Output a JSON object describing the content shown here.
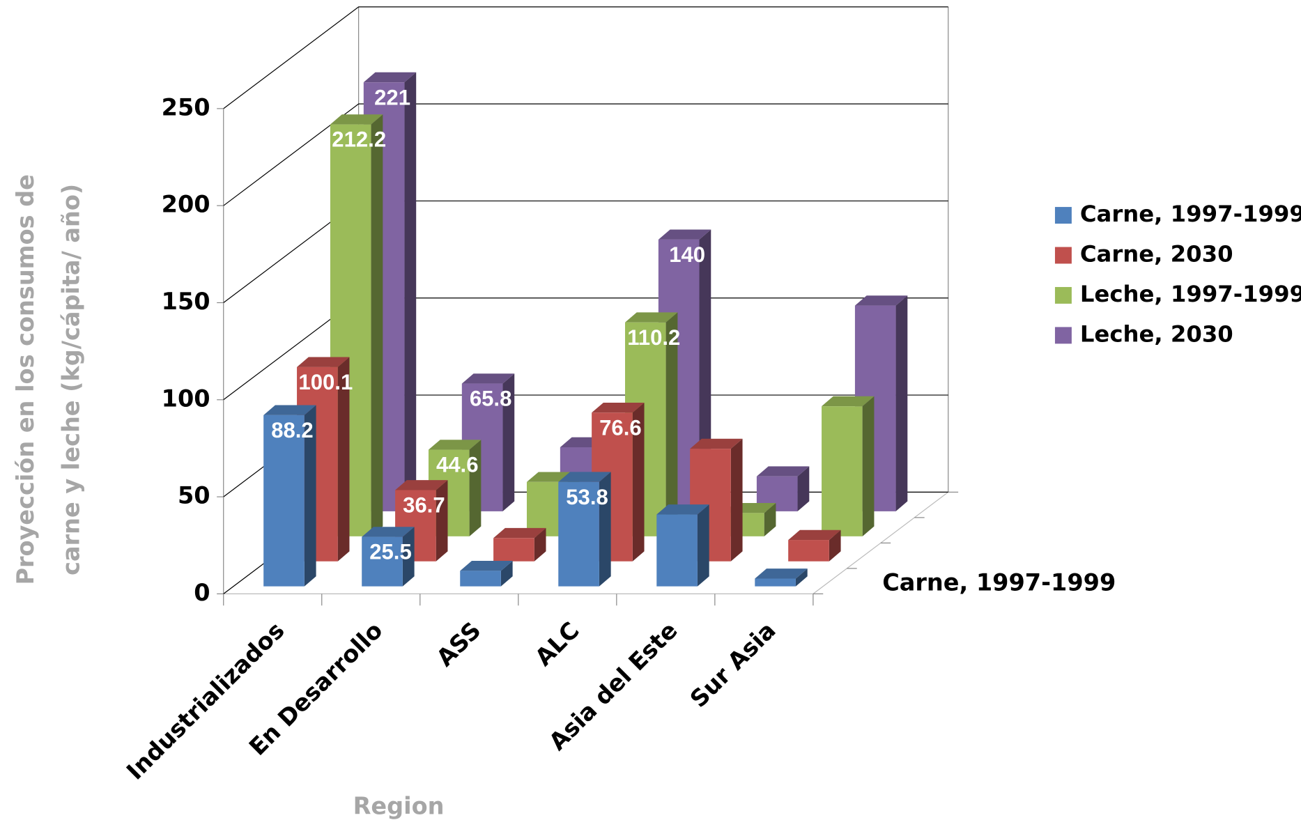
{
  "chart_data": {
    "type": "bar3d",
    "ylabel": [
      "Proyección en los consumos de",
      "carne y leche (kg/cápita/ año)"
    ],
    "xlabel": "Region",
    "depth_label": "Carne, 1997-1999",
    "categories": [
      "Industrializados",
      "En Desarrollo",
      "ASS",
      "ALC",
      "Asia del Este",
      "Sur Asia"
    ],
    "series": [
      {
        "name": "Carne, 1997-1999",
        "color": "#4f81bd",
        "values": [
          88.2,
          25.5,
          8,
          53.8,
          37,
          4
        ],
        "value_labels": [
          "88.2",
          "25.5",
          null,
          "53.8",
          null,
          null
        ]
      },
      {
        "name": "Carne, 2030",
        "color": "#c0504d",
        "values": [
          100.1,
          36.7,
          12,
          76.6,
          58,
          11
        ],
        "value_labels": [
          "100.1",
          "36.7",
          null,
          "76.6",
          null,
          null
        ]
      },
      {
        "name": "Leche, 1997-1999",
        "color": "#9bbb59",
        "values": [
          212.2,
          44.6,
          28,
          110.2,
          12,
          67
        ],
        "value_labels": [
          "212.2",
          "44.6",
          null,
          "110.2",
          null,
          null
        ]
      },
      {
        "name": "Leche, 2030",
        "color": "#8064a2",
        "values": [
          221,
          65.8,
          33,
          140,
          18,
          106
        ],
        "value_labels": [
          "221",
          "65.8",
          null,
          "140",
          null,
          null
        ]
      }
    ],
    "ylim": [
      0,
      250
    ],
    "yticks": [
      0,
      50,
      100,
      150,
      200,
      250
    ],
    "grid": true,
    "legend": "right"
  }
}
